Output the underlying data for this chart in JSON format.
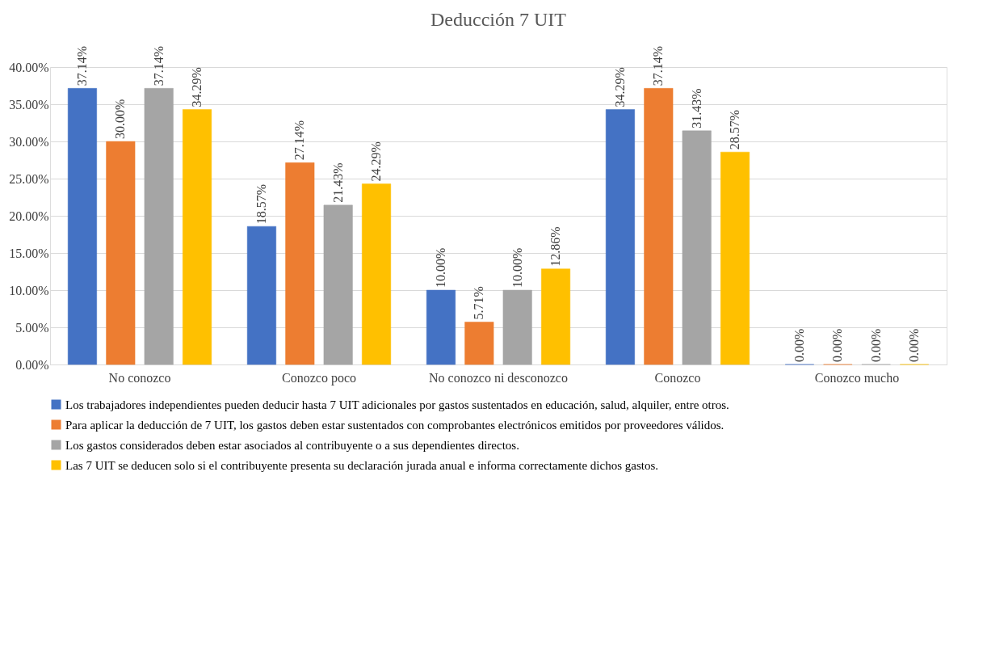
{
  "chart_data": {
    "type": "bar",
    "title": "Deducción 7 UIT",
    "categories": [
      "No conozco",
      "Conozco poco",
      "No conozco ni desconozco",
      "Conozco",
      "Conozco mucho"
    ],
    "series": [
      {
        "name": "Los trabajadores independientes pueden deducir hasta 7 UIT adicionales por gastos sustentados en educación, salud, alquiler, entre otros.",
        "color": "#4472c4",
        "values": [
          37.14,
          18.57,
          10.0,
          34.29,
          0.0
        ],
        "value_labels": [
          "37.14%",
          "18.57%",
          "10.00%",
          "34.29%",
          "0.00%"
        ]
      },
      {
        "name": "Para aplicar la deducción de 7 UIT, los gastos deben estar sustentados con comprobantes electrónicos emitidos por proveedores válidos.",
        "color": "#ed7d31",
        "values": [
          30.0,
          27.14,
          5.71,
          37.14,
          0.0
        ],
        "value_labels": [
          "30.00%",
          "27.14%",
          "5.71%",
          "37.14%",
          "0.00%"
        ]
      },
      {
        "name": "Los gastos considerados deben estar asociados al contribuyente o a sus dependientes directos.",
        "color": "#a5a5a5",
        "values": [
          37.14,
          21.43,
          10.0,
          31.43,
          0.0
        ],
        "value_labels": [
          "37.14%",
          "21.43%",
          "10.00%",
          "31.43%",
          "0.00%"
        ]
      },
      {
        "name": "Las 7 UIT se deducen solo si el contribuyente presenta su declaración jurada anual e informa correctamente dichos gastos.",
        "color": "#ffc000",
        "values": [
          34.29,
          24.29,
          12.86,
          28.57,
          0.0
        ],
        "value_labels": [
          "34.29%",
          "24.29%",
          "12.86%",
          "28.57%",
          "0.00%"
        ]
      }
    ],
    "ylim": [
      0,
      40
    ],
    "yticks": [
      {
        "value": 0,
        "label": "0.00%"
      },
      {
        "value": 5,
        "label": "5.00%"
      },
      {
        "value": 10,
        "label": "10.00%"
      },
      {
        "value": 15,
        "label": "15.00%"
      },
      {
        "value": 20,
        "label": "20.00%"
      },
      {
        "value": 25,
        "label": "25.00%"
      },
      {
        "value": 30,
        "label": "30.00%"
      },
      {
        "value": 35,
        "label": "35.00%"
      },
      {
        "value": 40,
        "label": "40.00%"
      }
    ],
    "grid": "y",
    "legend": "bottom"
  }
}
